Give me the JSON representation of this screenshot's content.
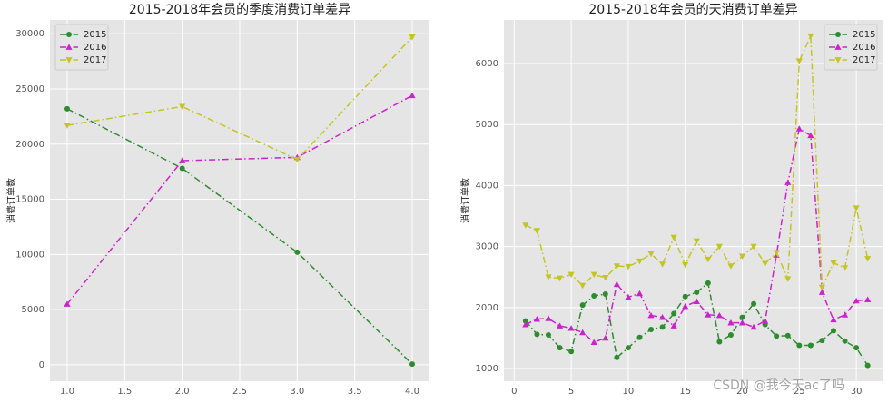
{
  "chart_data": [
    {
      "type": "line",
      "title": "2015-2018年会员的季度消费订单差异",
      "y_label": "消费订单数",
      "x": [
        1,
        2,
        3,
        4
      ],
      "series": [
        {
          "name": "2015",
          "color": "#2e8b2e",
          "marker": "o",
          "values": [
            23200,
            17800,
            10200,
            60
          ]
        },
        {
          "name": "2016",
          "color": "#cc22cc",
          "marker": "^",
          "values": [
            5500,
            18500,
            18800,
            24400
          ]
        },
        {
          "name": "2017",
          "color": "#c4c424",
          "marker": "v",
          "values": [
            21700,
            23400,
            18600,
            29700
          ]
        }
      ],
      "xlim": [
        0.85,
        4.15
      ],
      "ylim": [
        -1490,
        31250
      ],
      "xticks": [
        {
          "value": 1,
          "label": "1.0"
        },
        {
          "value": 1.5,
          "label": "1.5"
        },
        {
          "value": 2,
          "label": "2.0"
        },
        {
          "value": 2.5,
          "label": "2.5"
        },
        {
          "value": 3,
          "label": "3.0"
        },
        {
          "value": 3.5,
          "label": "3.5"
        },
        {
          "value": 4,
          "label": "4.0"
        }
      ],
      "yticks": [
        0,
        5000,
        10000,
        15000,
        20000,
        25000,
        30000
      ],
      "grid": true,
      "legend": "upper left"
    },
    {
      "type": "line",
      "title": "2015-2018年会员的天消费订单差异",
      "y_label": "消费订单数",
      "x": [
        1,
        2,
        3,
        4,
        5,
        6,
        7,
        8,
        9,
        10,
        11,
        12,
        13,
        14,
        15,
        16,
        17,
        18,
        19,
        20,
        21,
        22,
        23,
        24,
        25,
        26,
        27,
        28,
        29,
        30,
        31
      ],
      "series": [
        {
          "name": "2015",
          "color": "#2e8b2e",
          "marker": "o",
          "values": [
            1780,
            1560,
            1550,
            1340,
            1280,
            2040,
            2190,
            2220,
            1180,
            1340,
            1510,
            1640,
            1680,
            1900,
            2180,
            2250,
            2400,
            1440,
            1550,
            1840,
            2060,
            1720,
            1530,
            1540,
            1380,
            1380,
            1460,
            1620,
            1450,
            1340,
            1050
          ]
        },
        {
          "name": "2016",
          "color": "#cc22cc",
          "marker": "^",
          "values": [
            1720,
            1810,
            1820,
            1700,
            1660,
            1590,
            1430,
            1500,
            2380,
            2170,
            2230,
            1870,
            1840,
            1700,
            2020,
            2100,
            1880,
            1870,
            1750,
            1750,
            1680,
            1780,
            2860,
            4050,
            4930,
            4820,
            2250,
            1800,
            1880,
            2110,
            2130
          ]
        },
        {
          "name": "2017",
          "color": "#c4c424",
          "marker": "v",
          "values": [
            3350,
            3260,
            2500,
            2480,
            2540,
            2360,
            2540,
            2490,
            2680,
            2670,
            2760,
            2880,
            2710,
            3150,
            2700,
            3090,
            2790,
            3000,
            2680,
            2840,
            3000,
            2720,
            2900,
            2470,
            6040,
            6450,
            2330,
            2730,
            2650,
            3630,
            2800
          ]
        }
      ],
      "xlim": [
        -0.9,
        32.3
      ],
      "ylim": [
        792,
        6714
      ],
      "xticks": [
        0,
        5,
        10,
        15,
        20,
        25,
        30
      ],
      "yticks": [
        1000,
        2000,
        3000,
        4000,
        5000,
        6000
      ],
      "grid": true,
      "legend": "upper right"
    }
  ],
  "watermark": "CSDN @我今天ac了吗"
}
